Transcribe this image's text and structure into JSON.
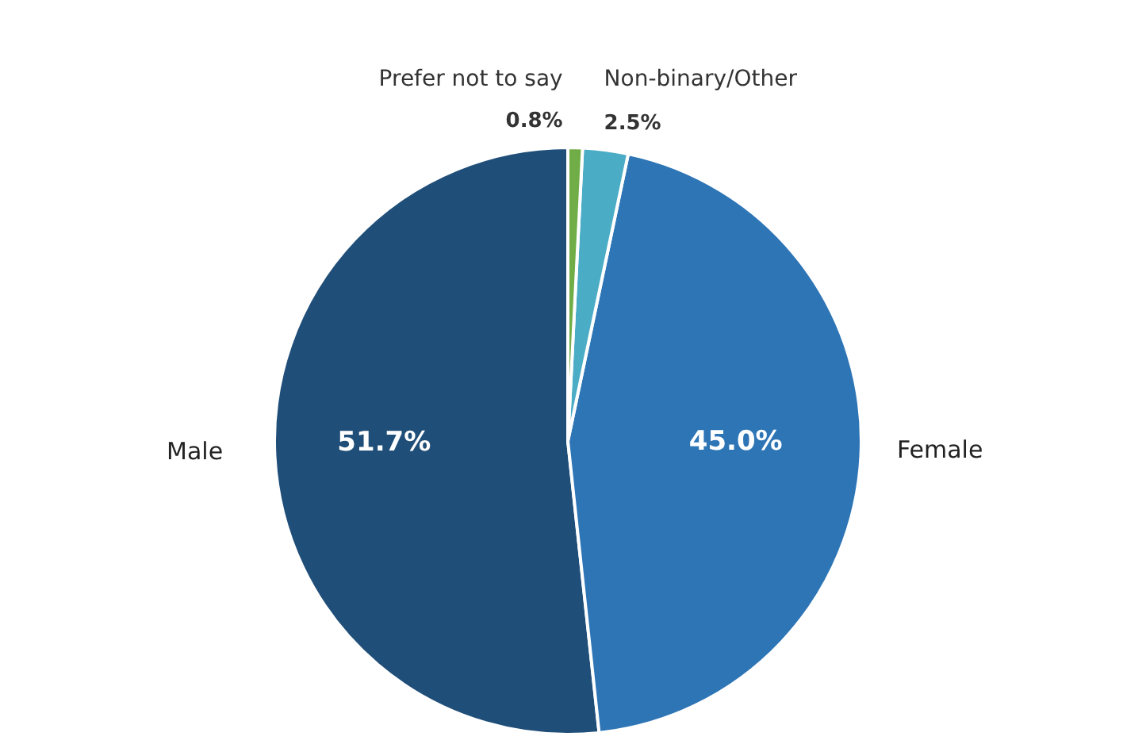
{
  "chart_data": {
    "type": "pie",
    "categories": [
      "Male",
      "Female",
      "Non-binary/Other",
      "Prefer not to say"
    ],
    "values": [
      51.7,
      45.0,
      2.5,
      0.8
    ],
    "value_labels": [
      "51.7%",
      "45.0%",
      "2.5%",
      "0.8%"
    ],
    "colors": [
      "#1f4e79",
      "#2e75b6",
      "#4bacc6",
      "#70ad47"
    ],
    "legend": false
  }
}
